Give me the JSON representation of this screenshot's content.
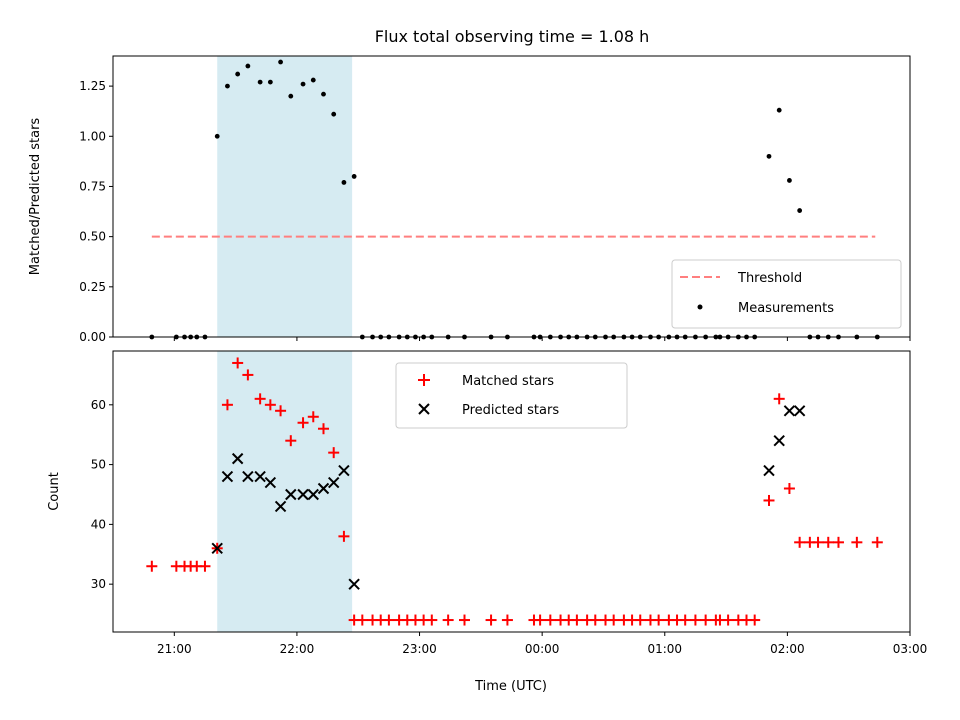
{
  "chart_data": [
    {
      "type": "scatter",
      "title": "Flux total observing time = 1.08 h",
      "ylabel": "Matched/Predicted stars",
      "ylim": [
        0,
        1.4
      ],
      "yticks": [
        "0.00",
        "0.25",
        "0.50",
        "0.75",
        "1.00",
        "1.25"
      ],
      "xlim": [
        "20:30",
        "03:00"
      ],
      "shaded_span": {
        "start": "21:21",
        "end": "22:27",
        "color": "#add8e6"
      },
      "legend_position": "lower-right",
      "threshold": {
        "name": "Threshold",
        "value": 0.5,
        "x_start": "20:49",
        "x_end": "02:43",
        "color": "#ff7f7f",
        "style": "dashed"
      },
      "series": [
        {
          "name": "Measurements",
          "color": "#000000",
          "marker": "dot",
          "points": [
            [
              "20:49",
              0.0
            ],
            [
              "21:01",
              0.0
            ],
            [
              "21:05",
              0.0
            ],
            [
              "21:08",
              0.0
            ],
            [
              "21:11",
              0.0
            ],
            [
              "21:15",
              0.0
            ],
            [
              "21:21",
              1.0
            ],
            [
              "21:26",
              1.25
            ],
            [
              "21:31",
              1.31
            ],
            [
              "21:36",
              1.35
            ],
            [
              "21:42",
              1.27
            ],
            [
              "21:47",
              1.27
            ],
            [
              "21:52",
              1.37
            ],
            [
              "21:57",
              1.2
            ],
            [
              "22:03",
              1.26
            ],
            [
              "22:08",
              1.28
            ],
            [
              "22:13",
              1.21
            ],
            [
              "22:18",
              1.11
            ],
            [
              "22:23",
              0.77
            ],
            [
              "22:28",
              0.8
            ],
            [
              "22:32",
              0.0
            ],
            [
              "22:37",
              0.0
            ],
            [
              "22:41",
              0.0
            ],
            [
              "22:45",
              0.0
            ],
            [
              "22:50",
              0.0
            ],
            [
              "22:54",
              0.0
            ],
            [
              "22:58",
              0.0
            ],
            [
              "23:02",
              0.0
            ],
            [
              "23:06",
              0.0
            ],
            [
              "23:14",
              0.0
            ],
            [
              "23:22",
              0.0
            ],
            [
              "23:35",
              0.0
            ],
            [
              "23:43",
              0.0
            ],
            [
              "23:56",
              0.0
            ],
            [
              "23:59",
              0.0
            ],
            [
              "00:04",
              0.0
            ],
            [
              "00:09",
              0.0
            ],
            [
              "00:13",
              0.0
            ],
            [
              "00:17",
              0.0
            ],
            [
              "00:22",
              0.0
            ],
            [
              "00:26",
              0.0
            ],
            [
              "00:31",
              0.0
            ],
            [
              "00:35",
              0.0
            ],
            [
              "00:40",
              0.0
            ],
            [
              "00:44",
              0.0
            ],
            [
              "00:48",
              0.0
            ],
            [
              "00:53",
              0.0
            ],
            [
              "00:57",
              0.0
            ],
            [
              "01:02",
              0.0
            ],
            [
              "01:06",
              0.0
            ],
            [
              "01:10",
              0.0
            ],
            [
              "01:15",
              0.0
            ],
            [
              "01:20",
              0.0
            ],
            [
              "01:25",
              0.0
            ],
            [
              "01:27",
              0.0
            ],
            [
              "01:31",
              0.0
            ],
            [
              "01:36",
              0.0
            ],
            [
              "01:40",
              0.0
            ],
            [
              "01:44",
              0.0
            ],
            [
              "01:51",
              0.9
            ],
            [
              "01:56",
              1.13
            ],
            [
              "02:01",
              0.78
            ],
            [
              "02:06",
              0.63
            ],
            [
              "02:11",
              0.0
            ],
            [
              "02:15",
              0.0
            ],
            [
              "02:20",
              0.0
            ],
            [
              "02:25",
              0.0
            ],
            [
              "02:34",
              0.0
            ],
            [
              "02:44",
              0.0
            ]
          ]
        }
      ]
    },
    {
      "type": "scatter",
      "xlabel": "Time (UTC)",
      "ylabel": "Count",
      "ylim": [
        22,
        69
      ],
      "yticks": [
        "30",
        "40",
        "50",
        "60"
      ],
      "xlim": [
        "20:30",
        "03:00"
      ],
      "xticks": [
        "21:00",
        "22:00",
        "23:00",
        "00:00",
        "01:00",
        "02:00",
        "03:00"
      ],
      "shaded_span": {
        "start": "21:21",
        "end": "22:27",
        "color": "#add8e6"
      },
      "legend_position": "top-center",
      "series": [
        {
          "name": "Matched stars",
          "color": "#ff0000",
          "marker": "plus",
          "points": [
            [
              "20:49",
              33
            ],
            [
              "21:01",
              33
            ],
            [
              "21:05",
              33
            ],
            [
              "21:08",
              33
            ],
            [
              "21:11",
              33
            ],
            [
              "21:15",
              33
            ],
            [
              "21:21",
              36
            ],
            [
              "21:26",
              60
            ],
            [
              "21:31",
              67
            ],
            [
              "21:36",
              65
            ],
            [
              "21:42",
              61
            ],
            [
              "21:47",
              60
            ],
            [
              "21:52",
              59
            ],
            [
              "21:57",
              54
            ],
            [
              "22:03",
              57
            ],
            [
              "22:08",
              58
            ],
            [
              "22:13",
              56
            ],
            [
              "22:18",
              52
            ],
            [
              "22:23",
              38
            ],
            [
              "22:28",
              24
            ],
            [
              "22:32",
              24
            ],
            [
              "22:37",
              24
            ],
            [
              "22:41",
              24
            ],
            [
              "22:45",
              24
            ],
            [
              "22:50",
              24
            ],
            [
              "22:54",
              24
            ],
            [
              "22:58",
              24
            ],
            [
              "23:02",
              24
            ],
            [
              "23:06",
              24
            ],
            [
              "23:14",
              24
            ],
            [
              "23:22",
              24
            ],
            [
              "23:35",
              24
            ],
            [
              "23:43",
              24
            ],
            [
              "23:56",
              24
            ],
            [
              "23:59",
              24
            ],
            [
              "00:04",
              24
            ],
            [
              "00:09",
              24
            ],
            [
              "00:13",
              24
            ],
            [
              "00:17",
              24
            ],
            [
              "00:22",
              24
            ],
            [
              "00:26",
              24
            ],
            [
              "00:31",
              24
            ],
            [
              "00:35",
              24
            ],
            [
              "00:40",
              24
            ],
            [
              "00:44",
              24
            ],
            [
              "00:48",
              24
            ],
            [
              "00:53",
              24
            ],
            [
              "00:57",
              24
            ],
            [
              "01:02",
              24
            ],
            [
              "01:06",
              24
            ],
            [
              "01:10",
              24
            ],
            [
              "01:15",
              24
            ],
            [
              "01:20",
              24
            ],
            [
              "01:25",
              24
            ],
            [
              "01:27",
              24
            ],
            [
              "01:31",
              24
            ],
            [
              "01:36",
              24
            ],
            [
              "01:40",
              24
            ],
            [
              "01:44",
              24
            ],
            [
              "01:51",
              44
            ],
            [
              "01:56",
              61
            ],
            [
              "02:01",
              46
            ],
            [
              "02:06",
              37
            ],
            [
              "02:11",
              37
            ],
            [
              "02:15",
              37
            ],
            [
              "02:20",
              37
            ],
            [
              "02:25",
              37
            ],
            [
              "02:34",
              37
            ],
            [
              "02:44",
              37
            ]
          ]
        },
        {
          "name": "Predicted stars",
          "color": "#000000",
          "marker": "x",
          "points": [
            [
              "21:21",
              36
            ],
            [
              "21:26",
              48
            ],
            [
              "21:31",
              51
            ],
            [
              "21:36",
              48
            ],
            [
              "21:42",
              48
            ],
            [
              "21:47",
              47
            ],
            [
              "21:52",
              43
            ],
            [
              "21:57",
              45
            ],
            [
              "22:03",
              45
            ],
            [
              "22:08",
              45
            ],
            [
              "22:13",
              46
            ],
            [
              "22:18",
              47
            ],
            [
              "22:23",
              49
            ],
            [
              "22:28",
              30
            ],
            [
              "01:51",
              49
            ],
            [
              "01:56",
              54
            ],
            [
              "02:01",
              59
            ],
            [
              "02:06",
              59
            ]
          ]
        }
      ]
    }
  ]
}
